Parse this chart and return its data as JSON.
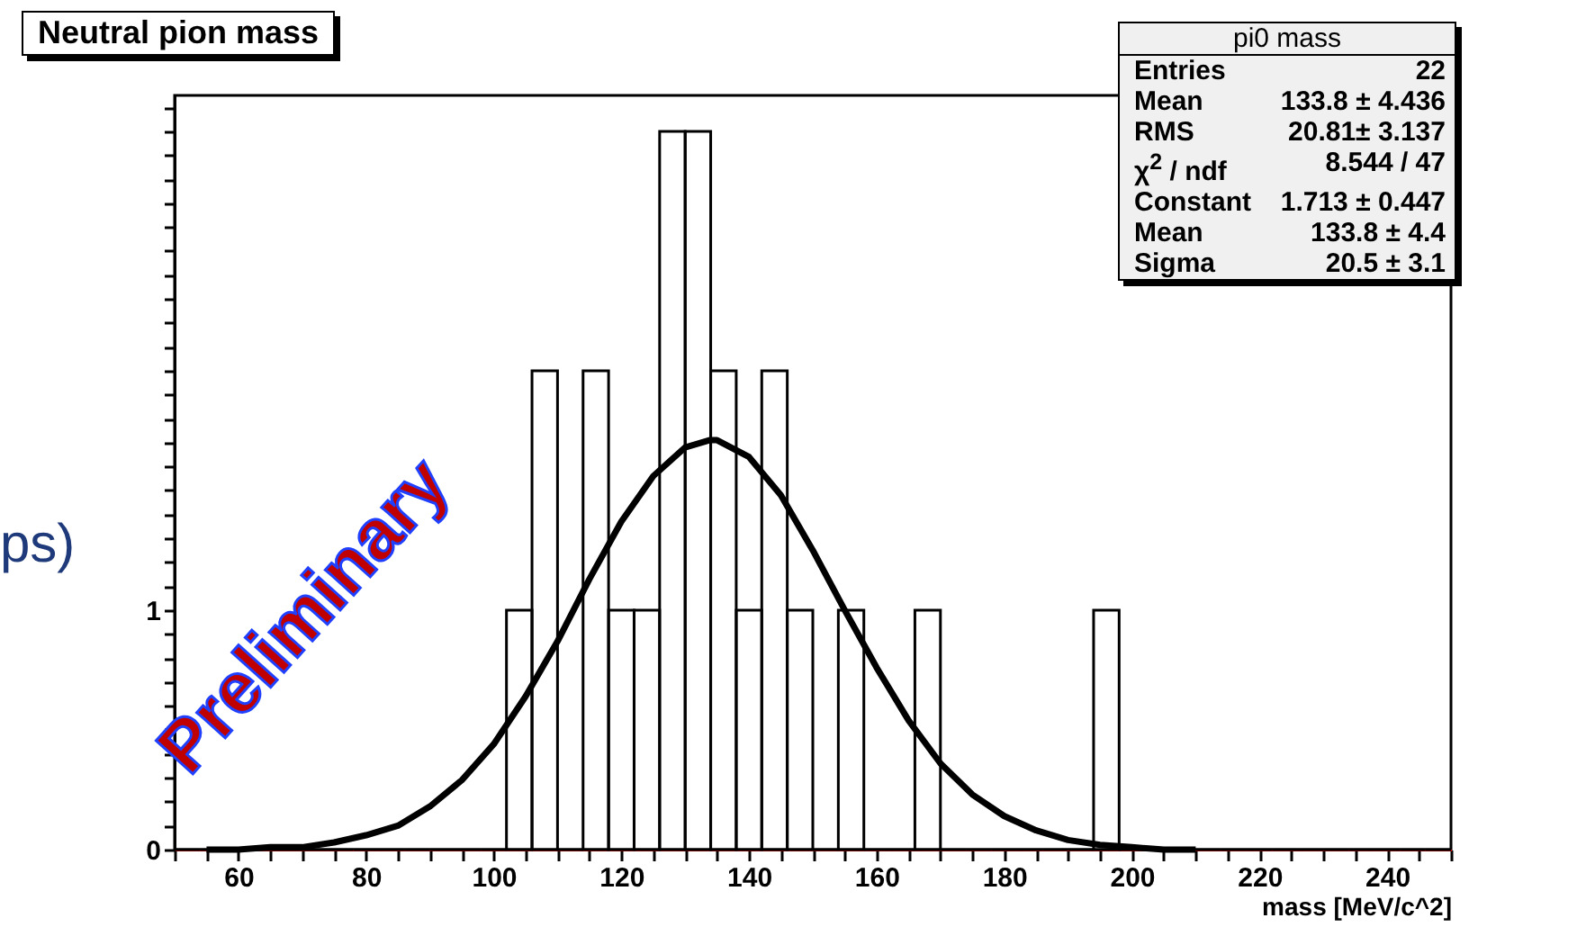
{
  "chart_data": {
    "type": "histogram",
    "title": "Neutral pion mass",
    "xlabel": "mass [MeV/c^2]",
    "bins": [
      50,
      54,
      58,
      62,
      66,
      70,
      74,
      78,
      82,
      86,
      90,
      94,
      98,
      102,
      106,
      110,
      114,
      118,
      122,
      126,
      130,
      134,
      138,
      142,
      146,
      150,
      154,
      158,
      162,
      166,
      170,
      174,
      178,
      182,
      186,
      190,
      194,
      198,
      202,
      206,
      210,
      214,
      218,
      222,
      226,
      230,
      234,
      238,
      242,
      246,
      250
    ],
    "series": [
      {
        "color": "#000000",
        "values": [
          0,
          0,
          0,
          0,
          0,
          0,
          0,
          0,
          0,
          0,
          0,
          0,
          0,
          1,
          2,
          0,
          2,
          1,
          1,
          3,
          3,
          2,
          1,
          2,
          1,
          0,
          1,
          0,
          0,
          1,
          0,
          0,
          0,
          0,
          0,
          0,
          1,
          0,
          0,
          0,
          0,
          0,
          0,
          0,
          0,
          0,
          0,
          0,
          0,
          0
        ]
      },
      {
        "type": "line",
        "color": "#000000",
        "x": [
          55,
          60,
          65,
          70,
          75,
          80,
          85,
          90,
          95,
          100,
          105,
          110,
          115,
          120,
          125,
          130,
          133.8,
          135,
          140,
          145,
          150,
          155,
          160,
          165,
          170,
          175,
          180,
          185,
          190,
          195,
          200,
          205,
          210
        ],
        "values": [
          0,
          0,
          0.01,
          0.01,
          0.03,
          0.06,
          0.1,
          0.18,
          0.29,
          0.44,
          0.64,
          0.87,
          1.13,
          1.37,
          1.56,
          1.68,
          1.71,
          1.71,
          1.64,
          1.48,
          1.25,
          1,
          0.76,
          0.54,
          0.36,
          0.23,
          0.14,
          0.08,
          0.04,
          0.02,
          0.01,
          0,
          0
        ]
      }
    ],
    "xlim": [
      50,
      250
    ],
    "xticks": [
      {
        "value": 50,
        "label": null
      },
      {
        "value": 55,
        "label": null
      },
      60,
      {
        "value": 65,
        "label": null
      },
      {
        "value": 70,
        "label": null
      },
      {
        "value": 75,
        "label": null
      },
      80,
      {
        "value": 85,
        "label": null
      },
      {
        "value": 90,
        "label": null
      },
      {
        "value": 95,
        "label": null
      },
      100,
      {
        "value": 105,
        "label": null
      },
      {
        "value": 110,
        "label": null
      },
      {
        "value": 115,
        "label": null
      },
      120,
      {
        "value": 125,
        "label": null
      },
      {
        "value": 130,
        "label": null
      },
      {
        "value": 135,
        "label": null
      },
      140,
      {
        "value": 145,
        "label": null
      },
      {
        "value": 150,
        "label": null
      },
      {
        "value": 155,
        "label": null
      },
      160,
      {
        "value": 165,
        "label": null
      },
      {
        "value": 170,
        "label": null
      },
      {
        "value": 175,
        "label": null
      },
      180,
      {
        "value": 185,
        "label": null
      },
      {
        "value": 190,
        "label": null
      },
      {
        "value": 195,
        "label": null
      },
      200,
      {
        "value": 205,
        "label": null
      },
      {
        "value": 210,
        "label": null
      },
      {
        "value": 215,
        "label": null
      },
      220,
      {
        "value": 225,
        "label": null
      },
      {
        "value": 230,
        "label": null
      },
      {
        "value": 235,
        "label": null
      },
      240,
      {
        "value": 245,
        "label": null
      },
      {
        "value": 250,
        "label": null
      }
    ],
    "ylim": [
      0,
      3.15
    ],
    "yticks": [
      0,
      {
        "value": 0.1,
        "label": null
      },
      {
        "value": 0.2,
        "label": null
      },
      {
        "value": 0.3,
        "label": null
      },
      {
        "value": 0.4,
        "label": null
      },
      {
        "value": 0.5,
        "label": null
      },
      {
        "value": 0.6,
        "label": null
      },
      {
        "value": 0.7,
        "label": null
      },
      {
        "value": 0.8,
        "label": null
      },
      {
        "value": 0.9,
        "label": null
      },
      1,
      {
        "value": 1.1,
        "label": null
      },
      {
        "value": 1.2,
        "label": null
      },
      {
        "value": 1.3,
        "label": null
      },
      {
        "value": 1.4,
        "label": null
      },
      {
        "value": 1.5,
        "label": null
      },
      {
        "value": 1.6,
        "label": null
      },
      {
        "value": 1.7,
        "label": null
      },
      {
        "value": 1.8,
        "label": null
      },
      {
        "value": 1.9,
        "label": null
      },
      {
        "value": 2,
        "label": null
      },
      {
        "value": 2.1,
        "label": null
      },
      {
        "value": 2.2,
        "label": null
      },
      {
        "value": 2.3,
        "label": null
      },
      {
        "value": 2.4,
        "label": null
      },
      {
        "value": 2.5,
        "label": null
      },
      {
        "value": 2.6,
        "label": null
      },
      {
        "value": 2.7,
        "label": null
      },
      {
        "value": 2.8,
        "label": null
      },
      {
        "value": 2.9,
        "label": null
      },
      {
        "value": 3,
        "label": null
      },
      {
        "value": 3.1,
        "label": null
      }
    ],
    "grid": false,
    "annotations": [
      "pi0 mass",
      "Entries",
      "22",
      "Mean",
      "133.8 ±  4.436",
      "RMS",
      "20.81±  3.137",
      "χ$^{2}$ / ndf",
      "8.544 / 47",
      "Constant",
      "1.713 ± 0.447",
      "Mean",
      "133.8 ± 4.4",
      "Sigma",
      "20.5 ± 3.1",
      "Preliminary",
      "ps)"
    ]
  }
}
